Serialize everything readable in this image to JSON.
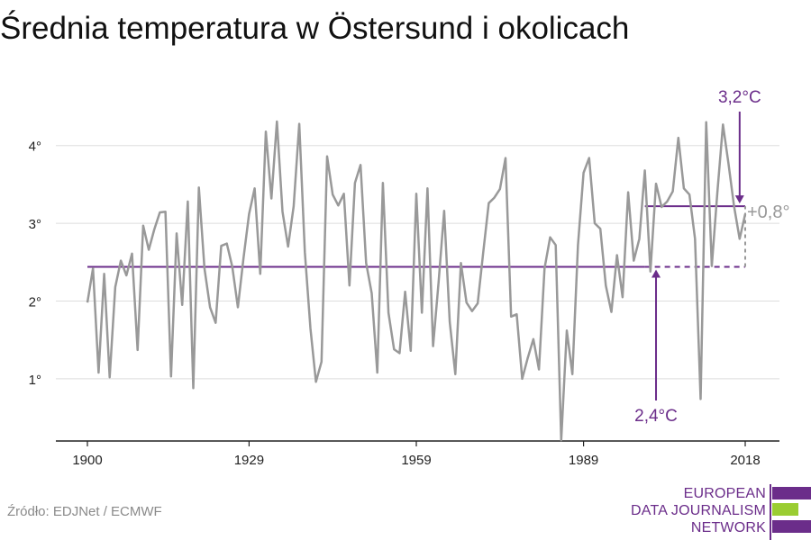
{
  "title": "Średnia temperatura w Östersund i okolicach",
  "source": "Źródło: EDJNet / ECMWF",
  "logo": {
    "lines": [
      "EUROPEAN",
      "DATA JOURNALISM",
      "NETWORK"
    ],
    "colors": {
      "purple": "#6b2d8a",
      "green": "#9acd32"
    }
  },
  "colors": {
    "series": "#999999",
    "reference": "#6b2d8a",
    "grid": "#dddddd",
    "axis": "#222222",
    "delta": "#999999"
  },
  "chart_data": {
    "type": "line",
    "title": "Średnia temperatura w Östersund i okolicach",
    "xlabel": "",
    "ylabel": "",
    "xlim": [
      1900,
      2018
    ],
    "ylim": [
      0.2,
      4.9
    ],
    "x_ticks": [
      1900,
      1929,
      1959,
      1989,
      2018
    ],
    "x_tick_labels": [
      "1900",
      "1929",
      "1959",
      "1989",
      "2018"
    ],
    "y_ticks": [
      1,
      2,
      3,
      4
    ],
    "y_tick_labels": [
      "1°",
      "2°",
      "3°",
      "4°"
    ],
    "grid": "horizontal",
    "series": [
      {
        "x": [
          1900,
          1901,
          1902,
          1903,
          1904,
          1905,
          1906,
          1907,
          1908,
          1909,
          1910,
          1911,
          1912,
          1913,
          1914,
          1915,
          1916,
          1917,
          1918,
          1919,
          1920,
          1921,
          1922,
          1923,
          1924,
          1925,
          1926,
          1927,
          1928,
          1929,
          1930,
          1931,
          1932,
          1933,
          1934,
          1935,
          1936,
          1937,
          1938,
          1939,
          1940,
          1941,
          1942,
          1943,
          1944,
          1945,
          1946,
          1947,
          1948,
          1949,
          1950,
          1951,
          1952,
          1953,
          1954,
          1955,
          1956,
          1957,
          1958,
          1959,
          1960,
          1961,
          1962,
          1963,
          1964,
          1965,
          1966,
          1967,
          1968,
          1969,
          1970,
          1971,
          1972,
          1973,
          1974,
          1975,
          1976,
          1977,
          1978,
          1979,
          1980,
          1981,
          1982,
          1983,
          1984,
          1985,
          1986,
          1987,
          1988,
          1989,
          1990,
          1991,
          1992,
          1993,
          1994,
          1995,
          1996,
          1997,
          1998,
          1999,
          2000,
          2001,
          2002,
          2003,
          2004,
          2005,
          2006,
          2007,
          2008,
          2009,
          2010,
          2011,
          2012,
          2013,
          2014,
          2015,
          2016,
          2017,
          2018
        ],
        "y": [
          1.98,
          2.42,
          1.08,
          2.35,
          1.02,
          2.18,
          2.52,
          2.33,
          2.61,
          1.37,
          2.97,
          2.66,
          2.92,
          3.14,
          3.15,
          1.03,
          2.87,
          1.95,
          3.28,
          0.88,
          3.46,
          2.42,
          1.92,
          1.72,
          2.71,
          2.74,
          2.44,
          1.92,
          2.55,
          3.12,
          3.45,
          2.35,
          4.18,
          3.32,
          4.31,
          3.15,
          2.7,
          3.22,
          4.28,
          2.63,
          1.65,
          0.96,
          1.22,
          3.86,
          3.37,
          3.23,
          3.38,
          2.2,
          3.52,
          3.75,
          2.49,
          2.1,
          1.08,
          3.52,
          1.85,
          1.38,
          1.33,
          2.12,
          1.36,
          3.38,
          1.85,
          3.45,
          1.42,
          2.24,
          3.16,
          1.73,
          1.06,
          2.49,
          1.98,
          1.87,
          1.97,
          2.62,
          3.26,
          3.33,
          3.44,
          3.84,
          1.8,
          1.83,
          1.0,
          1.27,
          1.51,
          1.12,
          2.42,
          2.82,
          2.72,
          0.21,
          1.62,
          1.06,
          2.72,
          3.65,
          3.84,
          3.0,
          2.93,
          2.2,
          1.86,
          2.59,
          2.05,
          3.4,
          2.52,
          2.8,
          3.68,
          2.38,
          3.51,
          3.21,
          3.28,
          3.41,
          4.1,
          3.45,
          3.37,
          2.8,
          0.74,
          4.3,
          2.45,
          3.4,
          4.27,
          3.77,
          3.22,
          2.8,
          3.12
        ]
      }
    ],
    "reference_lines": [
      {
        "label": "2,4°C",
        "value": 2.44,
        "x_start": 1900,
        "x_end": 2018
      },
      {
        "label": "3,2°C",
        "value": 3.22,
        "x_start": 2000,
        "x_end": 2018
      }
    ],
    "annotations": {
      "recent_label": "3,2°C",
      "baseline_label": "2,4°C",
      "delta_label": "+0,8°"
    }
  }
}
